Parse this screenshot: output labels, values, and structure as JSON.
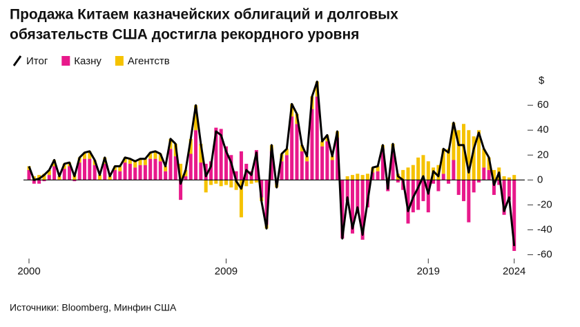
{
  "chart_data": {
    "type": "stacked-bar-line",
    "title": [
      "Продажа Китаем казначейских облигаций и долговых",
      "обязательств США достигла рекордного уровня"
    ],
    "source": "Источники: Bloomberg, Минфин США",
    "y_unit": "$",
    "categories": [
      "2000",
      null,
      null,
      null,
      null,
      null,
      null,
      null,
      null,
      null,
      null,
      null,
      null,
      null,
      null,
      null,
      null,
      null,
      null,
      null,
      null,
      null,
      null,
      null,
      null,
      null,
      null,
      null,
      null,
      null,
      null,
      null,
      null,
      null,
      null,
      null,
      null,
      null,
      null,
      "2009",
      null,
      null,
      null,
      null,
      null,
      null,
      null,
      null,
      null,
      null,
      null,
      null,
      null,
      null,
      null,
      null,
      null,
      null,
      null,
      null,
      null,
      null,
      null,
      null,
      null,
      null,
      null,
      null,
      null,
      null,
      null,
      null,
      null,
      null,
      null,
      null,
      null,
      null,
      null,
      "2019",
      null,
      null,
      null,
      null,
      null,
      null,
      null,
      null,
      null,
      null,
      null,
      null,
      null,
      null,
      null,
      null,
      "2024"
    ],
    "series": [
      {
        "name": "Итог",
        "color": "#000000",
        "kind": "line",
        "values": [
          11,
          0,
          1,
          4,
          8,
          16,
          3,
          13,
          14,
          3,
          18,
          22,
          23,
          16,
          4,
          18,
          3,
          11,
          11,
          18,
          17,
          15,
          17,
          17,
          22,
          23,
          21,
          11,
          33,
          29,
          -3,
          8,
          33,
          60,
          29,
          3,
          11,
          39,
          36,
          23,
          14,
          -1,
          -7,
          8,
          4,
          22,
          -17,
          -39,
          28,
          -6,
          21,
          25,
          61,
          53,
          28,
          19,
          67,
          79,
          31,
          36,
          19,
          39,
          -47,
          -14,
          -39,
          -22,
          -44,
          -17,
          10,
          11,
          28,
          -7,
          29,
          3,
          0,
          -25,
          -14,
          -6,
          3,
          -11,
          7,
          3,
          25,
          22,
          46,
          28,
          28,
          6,
          25,
          38,
          25,
          18,
          -4,
          6,
          -25,
          -14,
          -53
        ]
      },
      {
        "name": "Казну",
        "color": "#e8198b",
        "kind": "bar",
        "values": [
          8,
          -3,
          -3,
          -1,
          4,
          11,
          0,
          9,
          11,
          -1,
          14,
          17,
          17,
          12,
          0,
          13,
          0,
          8,
          7,
          14,
          13,
          10,
          12,
          12,
          17,
          17,
          15,
          7,
          25,
          19,
          -16,
          3,
          21,
          40,
          14,
          13,
          15,
          42,
          41,
          27,
          20,
          7,
          23,
          13,
          7,
          24,
          -14,
          -36,
          23,
          -2,
          15,
          20,
          51,
          45,
          23,
          15,
          57,
          67,
          27,
          31,
          16,
          34,
          -47,
          -17,
          -43,
          -27,
          -48,
          -22,
          6,
          7,
          25,
          -9,
          25,
          -2,
          -8,
          -35,
          -26,
          -24,
          -17,
          -26,
          -3,
          -9,
          5,
          -3,
          16,
          -12,
          -17,
          -34,
          -10,
          -2,
          10,
          8,
          -12,
          -4,
          -28,
          -16,
          -57
        ]
      },
      {
        "name": "Агентств",
        "color": "#f5c200",
        "kind": "bar",
        "values": [
          3,
          3,
          4,
          5,
          4,
          5,
          3,
          4,
          3,
          4,
          4,
          5,
          6,
          4,
          4,
          5,
          3,
          3,
          4,
          4,
          4,
          5,
          5,
          5,
          5,
          6,
          6,
          4,
          8,
          10,
          13,
          5,
          12,
          20,
          15,
          -10,
          -4,
          -3,
          -5,
          -4,
          -6,
          -8,
          -30,
          -5,
          -3,
          -2,
          -3,
          -3,
          5,
          -4,
          6,
          5,
          10,
          8,
          5,
          4,
          10,
          12,
          4,
          5,
          3,
          5,
          0,
          3,
          4,
          5,
          4,
          5,
          4,
          4,
          3,
          2,
          4,
          5,
          8,
          10,
          12,
          18,
          20,
          15,
          10,
          12,
          20,
          25,
          30,
          40,
          45,
          40,
          35,
          40,
          15,
          10,
          8,
          10,
          3,
          2,
          4
        ]
      }
    ],
    "ylim": [
      -62,
      84
    ],
    "yticks": [
      60,
      40,
      20,
      0,
      -20,
      -40,
      -60
    ],
    "legend": "top-left"
  }
}
